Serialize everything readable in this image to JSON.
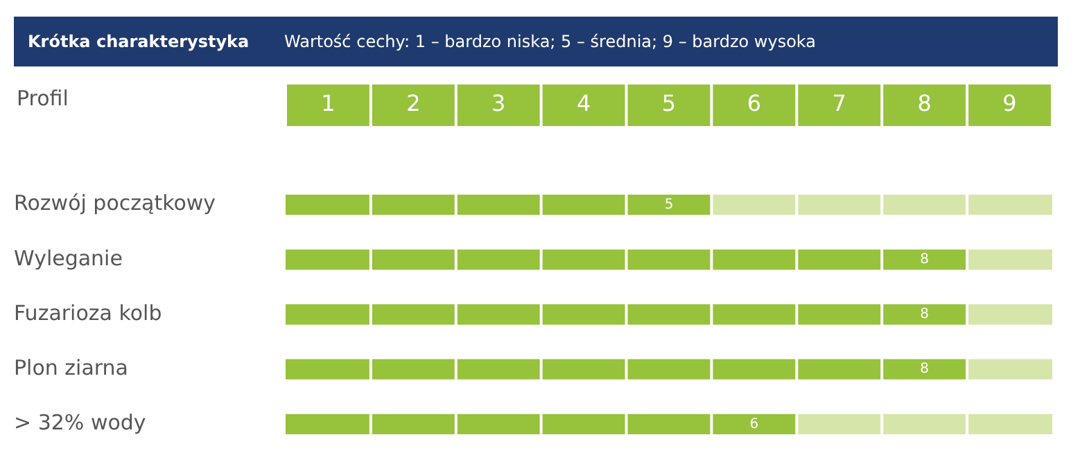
{
  "chart_data": {
    "type": "bar",
    "orientation": "horizontal",
    "stacked": true,
    "title": "Krótka charakterystyka",
    "subtitle": "Wartość cechy: 1 – bardzo niska; 5 – średnia; 9 – bardzo wysoka",
    "xlabel": "Profil",
    "categories": [
      "Rozwój początkowy",
      "Wyleganie",
      "Fuzarioza kolb",
      "Plon ziarna",
      "> 32% wody"
    ],
    "series": [
      {
        "color": "#97c23c",
        "values": [
          5,
          8,
          8,
          8,
          6
        ],
        "value_labels": [
          "5",
          "8",
          "8",
          "8",
          "6"
        ]
      },
      {
        "color": "#d6e6aa",
        "values": [
          4,
          1,
          1,
          1,
          3
        ]
      }
    ],
    "xlim": [
      0,
      9
    ],
    "xticks": [
      {
        "value": 0.5,
        "label": "1"
      },
      {
        "value": 1.5,
        "label": "2"
      },
      {
        "value": 2.5,
        "label": "3"
      },
      {
        "value": 3.5,
        "label": "4"
      },
      {
        "value": 4.5,
        "label": "5"
      },
      {
        "value": 5.5,
        "label": "6"
      },
      {
        "value": 6.5,
        "label": "7"
      },
      {
        "value": 7.5,
        "label": "8"
      },
      {
        "value": 8.5,
        "label": "9"
      }
    ],
    "grid": "x",
    "legend": false
  }
}
